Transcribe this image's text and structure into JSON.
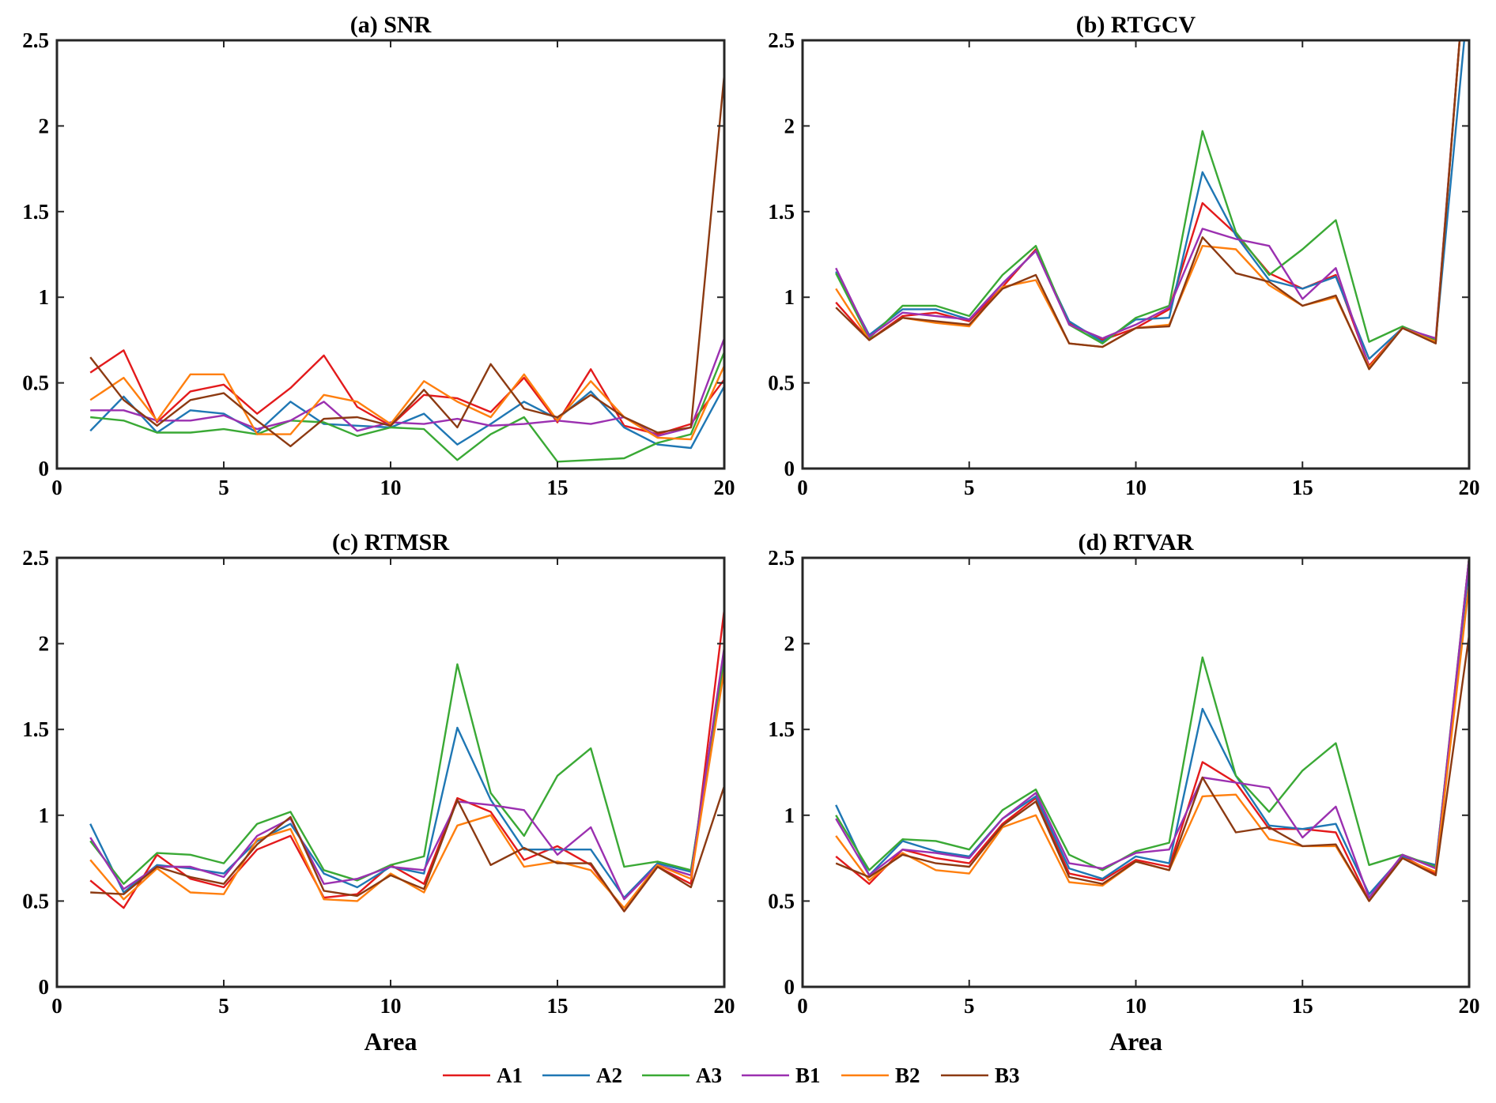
{
  "figure": {
    "xlabel": "Area",
    "legend_position": "bottom-center"
  },
  "series_meta": [
    {
      "name": "A1",
      "color": "#e31a1c"
    },
    {
      "name": "A2",
      "color": "#1f77b4"
    },
    {
      "name": "A3",
      "color": "#3aa935"
    },
    {
      "name": "B1",
      "color": "#9b30b0"
    },
    {
      "name": "B2",
      "color": "#ff7f0e"
    },
    {
      "name": "B3",
      "color": "#8c3a12"
    }
  ],
  "chart_data": [
    {
      "type": "line",
      "title": "(a) SNR",
      "xlabel": "",
      "xlim": [
        0,
        20
      ],
      "ylim": [
        0,
        2.5
      ],
      "xticks": [
        "0",
        "5",
        "10",
        "15",
        "20"
      ],
      "yticks": [
        "0",
        "0.5",
        "1",
        "1.5",
        "2",
        "2.5"
      ],
      "x": [
        1,
        2,
        3,
        4,
        5,
        6,
        7,
        8,
        9,
        10,
        11,
        12,
        13,
        14,
        15,
        16,
        17,
        18,
        19,
        20
      ],
      "series": [
        {
          "name": "A1",
          "values": [
            0.56,
            0.69,
            0.27,
            0.45,
            0.49,
            0.32,
            0.47,
            0.66,
            0.36,
            0.25,
            0.43,
            0.41,
            0.33,
            0.53,
            0.27,
            0.58,
            0.25,
            0.2,
            0.26,
            0.52
          ]
        },
        {
          "name": "A2",
          "values": [
            0.22,
            0.42,
            0.21,
            0.34,
            0.32,
            0.21,
            0.39,
            0.26,
            0.25,
            0.24,
            0.32,
            0.14,
            0.26,
            0.39,
            0.29,
            0.45,
            0.24,
            0.14,
            0.12,
            0.48
          ]
        },
        {
          "name": "A3",
          "values": [
            0.3,
            0.28,
            0.21,
            0.21,
            0.23,
            0.2,
            0.28,
            0.27,
            0.19,
            0.24,
            0.23,
            0.05,
            0.2,
            0.3,
            0.04,
            0.05,
            0.06,
            0.15,
            0.2,
            0.68
          ]
        },
        {
          "name": "B1",
          "values": [
            0.34,
            0.34,
            0.28,
            0.28,
            0.31,
            0.23,
            0.28,
            0.39,
            0.22,
            0.27,
            0.26,
            0.29,
            0.25,
            0.26,
            0.28,
            0.26,
            0.3,
            0.19,
            0.24,
            0.76
          ]
        },
        {
          "name": "B2",
          "values": [
            0.4,
            0.53,
            0.28,
            0.55,
            0.55,
            0.2,
            0.2,
            0.43,
            0.39,
            0.26,
            0.51,
            0.39,
            0.3,
            0.55,
            0.28,
            0.51,
            0.3,
            0.18,
            0.17,
            0.6
          ]
        },
        {
          "name": "B3",
          "values": [
            0.65,
            0.4,
            0.25,
            0.4,
            0.44,
            0.28,
            0.13,
            0.29,
            0.3,
            0.25,
            0.46,
            0.24,
            0.61,
            0.35,
            0.3,
            0.43,
            0.3,
            0.21,
            0.24,
            2.3
          ]
        }
      ]
    },
    {
      "type": "line",
      "title": "(b) RTGCV",
      "xlabel": "",
      "xlim": [
        0,
        20
      ],
      "ylim": [
        0,
        2.5
      ],
      "xticks": [
        "0",
        "5",
        "10",
        "15",
        "20"
      ],
      "yticks": [
        "0",
        "0.5",
        "1",
        "1.5",
        "2",
        "2.5"
      ],
      "x": [
        1,
        2,
        3,
        4,
        5,
        6,
        7,
        8,
        9,
        10,
        11,
        12,
        13,
        14,
        15,
        16,
        17,
        18,
        19,
        20
      ],
      "series": [
        {
          "name": "A1",
          "values": [
            0.97,
            0.75,
            0.89,
            0.91,
            0.86,
            1.06,
            1.28,
            0.85,
            0.75,
            0.82,
            0.93,
            1.55,
            1.37,
            1.14,
            1.05,
            1.13,
            0.6,
            0.82,
            0.74,
            3.2
          ]
        },
        {
          "name": "A2",
          "values": [
            1.15,
            0.78,
            0.93,
            0.93,
            0.87,
            1.08,
            1.27,
            0.86,
            0.74,
            0.87,
            0.88,
            1.73,
            1.36,
            1.1,
            1.05,
            1.12,
            0.64,
            0.82,
            0.75,
            2.8
          ]
        },
        {
          "name": "A3",
          "values": [
            1.14,
            0.76,
            0.95,
            0.95,
            0.89,
            1.13,
            1.3,
            0.84,
            0.73,
            0.88,
            0.95,
            1.97,
            1.38,
            1.13,
            1.28,
            1.45,
            0.74,
            0.83,
            0.75,
            3.2
          ]
        },
        {
          "name": "B1",
          "values": [
            1.17,
            0.77,
            0.91,
            0.89,
            0.87,
            1.08,
            1.27,
            0.84,
            0.76,
            0.84,
            0.94,
            1.4,
            1.34,
            1.3,
            0.99,
            1.17,
            0.59,
            0.82,
            0.76,
            3.2
          ]
        },
        {
          "name": "B2",
          "values": [
            1.05,
            0.75,
            0.88,
            0.85,
            0.83,
            1.06,
            1.1,
            0.73,
            0.71,
            0.82,
            0.84,
            1.3,
            1.28,
            1.07,
            0.95,
            1.0,
            0.59,
            0.82,
            0.74,
            3.2
          ]
        },
        {
          "name": "B3",
          "values": [
            0.94,
            0.75,
            0.88,
            0.86,
            0.84,
            1.05,
            1.13,
            0.73,
            0.71,
            0.82,
            0.83,
            1.35,
            1.14,
            1.09,
            0.95,
            1.01,
            0.58,
            0.82,
            0.73,
            3.2
          ]
        }
      ]
    },
    {
      "type": "line",
      "title": "(c) RTMSR",
      "xlabel": "Area",
      "xlim": [
        0,
        20
      ],
      "ylim": [
        0,
        2.5
      ],
      "xticks": [
        "0",
        "5",
        "10",
        "15",
        "20"
      ],
      "yticks": [
        "0",
        "0.5",
        "1",
        "1.5",
        "2",
        "2.5"
      ],
      "x": [
        1,
        2,
        3,
        4,
        5,
        6,
        7,
        8,
        9,
        10,
        11,
        12,
        13,
        14,
        15,
        16,
        17,
        18,
        19,
        20
      ],
      "series": [
        {
          "name": "A1",
          "values": [
            0.62,
            0.46,
            0.77,
            0.63,
            0.58,
            0.8,
            0.88,
            0.52,
            0.54,
            0.71,
            0.6,
            1.1,
            1.02,
            0.74,
            0.82,
            0.71,
            0.44,
            0.7,
            0.6,
            2.2
          ]
        },
        {
          "name": "A2",
          "values": [
            0.95,
            0.55,
            0.71,
            0.69,
            0.66,
            0.85,
            0.95,
            0.66,
            0.58,
            0.7,
            0.66,
            1.51,
            1.09,
            0.8,
            0.8,
            0.8,
            0.52,
            0.72,
            0.67,
            1.96
          ]
        },
        {
          "name": "A3",
          "values": [
            0.85,
            0.6,
            0.78,
            0.77,
            0.72,
            0.95,
            1.02,
            0.68,
            0.62,
            0.71,
            0.76,
            1.88,
            1.13,
            0.88,
            1.23,
            1.39,
            0.7,
            0.73,
            0.68,
            1.9
          ]
        },
        {
          "name": "B1",
          "values": [
            0.87,
            0.57,
            0.7,
            0.7,
            0.64,
            0.88,
            0.98,
            0.6,
            0.63,
            0.7,
            0.68,
            1.08,
            1.06,
            1.03,
            0.77,
            0.93,
            0.51,
            0.71,
            0.65,
            1.98
          ]
        },
        {
          "name": "B2",
          "values": [
            0.74,
            0.51,
            0.69,
            0.55,
            0.54,
            0.86,
            0.92,
            0.51,
            0.5,
            0.66,
            0.55,
            0.94,
            1.0,
            0.7,
            0.73,
            0.68,
            0.46,
            0.71,
            0.63,
            1.85
          ]
        },
        {
          "name": "B3",
          "values": [
            0.55,
            0.54,
            0.7,
            0.64,
            0.6,
            0.83,
            0.99,
            0.56,
            0.53,
            0.65,
            0.57,
            1.09,
            0.71,
            0.81,
            0.72,
            0.72,
            0.44,
            0.7,
            0.58,
            1.17
          ]
        }
      ]
    },
    {
      "type": "line",
      "title": "(d) RTVAR",
      "xlabel": "Area",
      "xlim": [
        0,
        20
      ],
      "ylim": [
        0,
        2.5
      ],
      "xticks": [
        "0",
        "5",
        "10",
        "15",
        "20"
      ],
      "yticks": [
        "0",
        "0.5",
        "1",
        "1.5",
        "2",
        "2.5"
      ],
      "x": [
        1,
        2,
        3,
        4,
        5,
        6,
        7,
        8,
        9,
        10,
        11,
        12,
        13,
        14,
        15,
        16,
        17,
        18,
        19,
        20
      ],
      "series": [
        {
          "name": "A1",
          "values": [
            0.76,
            0.6,
            0.8,
            0.75,
            0.72,
            0.95,
            1.1,
            0.66,
            0.62,
            0.74,
            0.7,
            1.31,
            1.19,
            0.92,
            0.92,
            0.9,
            0.5,
            0.76,
            0.66,
            2.5
          ]
        },
        {
          "name": "A2",
          "values": [
            1.06,
            0.65,
            0.85,
            0.79,
            0.76,
            0.98,
            1.11,
            0.69,
            0.63,
            0.76,
            0.72,
            1.62,
            1.23,
            0.94,
            0.92,
            0.95,
            0.54,
            0.76,
            0.71,
            2.45
          ]
        },
        {
          "name": "A3",
          "values": [
            1.0,
            0.68,
            0.86,
            0.85,
            0.8,
            1.03,
            1.15,
            0.77,
            0.68,
            0.79,
            0.84,
            1.92,
            1.23,
            1.02,
            1.26,
            1.42,
            0.71,
            0.77,
            0.7,
            2.5
          ]
        },
        {
          "name": "B1",
          "values": [
            0.98,
            0.65,
            0.8,
            0.78,
            0.75,
            0.98,
            1.13,
            0.72,
            0.69,
            0.78,
            0.8,
            1.22,
            1.19,
            1.16,
            0.87,
            1.05,
            0.52,
            0.77,
            0.69,
            2.5
          ]
        },
        {
          "name": "B2",
          "values": [
            0.88,
            0.62,
            0.78,
            0.68,
            0.66,
            0.93,
            1.0,
            0.61,
            0.59,
            0.73,
            0.68,
            1.11,
            1.12,
            0.86,
            0.82,
            0.82,
            0.5,
            0.75,
            0.67,
            2.35
          ]
        },
        {
          "name": "B3",
          "values": [
            0.72,
            0.64,
            0.77,
            0.72,
            0.7,
            0.94,
            1.08,
            0.64,
            0.6,
            0.73,
            0.68,
            1.22,
            0.9,
            0.93,
            0.82,
            0.83,
            0.5,
            0.75,
            0.65,
            2.05
          ]
        }
      ]
    }
  ]
}
